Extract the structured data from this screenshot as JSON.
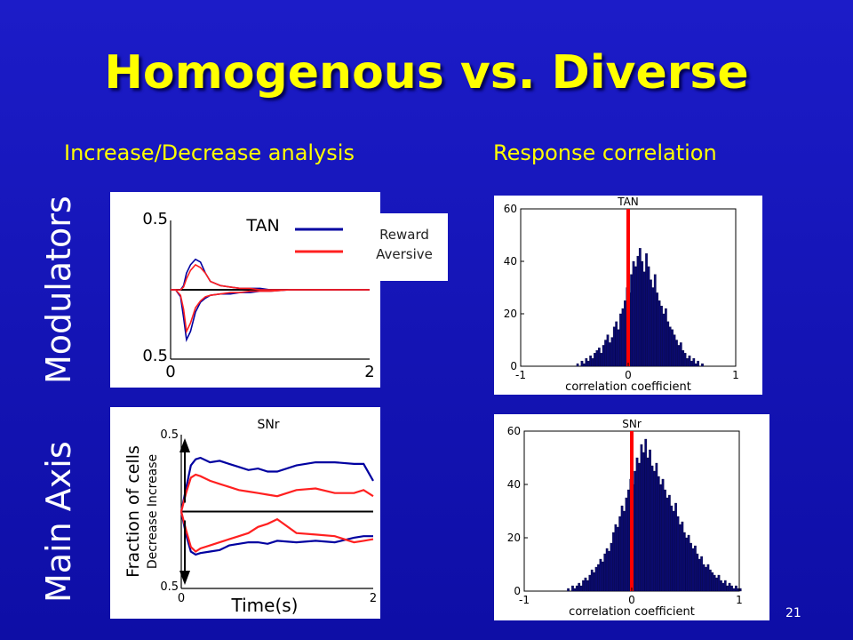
{
  "slide": {
    "title": "Homogenous vs. Diverse",
    "left_heading": "Increase/Decrease analysis",
    "right_heading": "Response correlation",
    "row_top_label": "Modulators",
    "row_bottom_label": "Main Axis",
    "slide_number": "21",
    "colors": {
      "title": "#ffff00",
      "background": "#1616bb",
      "bars": "#0a0a6e",
      "zero_line": "#ff0000",
      "reward": "#0000a0",
      "aversive": "#ff2020"
    }
  },
  "legend": {
    "reward": "Reward",
    "aversive": "Aversive"
  },
  "chart_data": [
    {
      "type": "line",
      "title": "TAN",
      "x_tick_labels": [
        "0",
        "2"
      ],
      "y_tick_labels": [
        "0.5",
        "0.5"
      ],
      "xlim": [
        0,
        2
      ],
      "ylim": [
        -0.5,
        0.5
      ],
      "legend": "top-right",
      "series": [
        {
          "name": "Reward",
          "color": "#0000a0",
          "x": [
            0,
            0.05,
            0.1,
            0.13,
            0.16,
            0.2,
            0.25,
            0.3,
            0.35,
            0.4,
            0.5,
            0.6,
            0.7,
            0.8,
            0.9,
            1.0,
            1.2,
            1.4,
            1.6,
            1.8,
            2.0
          ],
          "upper": [
            0,
            0,
            0,
            0.03,
            0.12,
            0.18,
            0.22,
            0.2,
            0.12,
            0.06,
            0.03,
            0.02,
            0.01,
            0.01,
            0.01,
            0.0,
            0.0,
            0.0,
            0.0,
            0.0,
            0.0
          ],
          "lower": [
            0,
            0,
            -0.05,
            -0.2,
            -0.36,
            -0.3,
            -0.16,
            -0.09,
            -0.06,
            -0.04,
            -0.03,
            -0.03,
            -0.02,
            -0.02,
            -0.01,
            -0.01,
            0.0,
            0.0,
            0.0,
            0.0,
            0.0
          ]
        },
        {
          "name": "Aversive",
          "color": "#ff2020",
          "x": [
            0,
            0.05,
            0.1,
            0.13,
            0.16,
            0.2,
            0.25,
            0.3,
            0.35,
            0.4,
            0.5,
            0.6,
            0.7,
            0.8,
            0.9,
            1.0,
            1.2,
            1.4,
            1.6,
            1.8,
            2.0
          ],
          "upper": [
            0,
            0,
            0,
            0.02,
            0.08,
            0.14,
            0.18,
            0.16,
            0.12,
            0.06,
            0.03,
            0.02,
            0.01,
            0.01,
            0.0,
            0.0,
            0.0,
            0.0,
            0.0,
            0.0,
            0.0
          ],
          "lower": [
            0,
            0,
            -0.04,
            -0.14,
            -0.3,
            -0.24,
            -0.13,
            -0.08,
            -0.05,
            -0.04,
            -0.03,
            -0.02,
            -0.02,
            -0.01,
            -0.01,
            -0.01,
            0.0,
            0.0,
            0.0,
            0.0,
            0.0
          ]
        }
      ]
    },
    {
      "type": "line",
      "title": "SNr",
      "xlabel": "Time(s)",
      "ylabel": "Fraction of cells",
      "ylabel_inner": "Decrease Increase",
      "x_tick_labels": [
        "0",
        "2"
      ],
      "y_tick_labels": [
        "0.5",
        "0.5"
      ],
      "xlim": [
        0,
        2
      ],
      "ylim": [
        -0.5,
        0.5
      ],
      "series": [
        {
          "name": "Reward",
          "color": "#0000a0",
          "x": [
            0,
            0.05,
            0.1,
            0.15,
            0.2,
            0.3,
            0.4,
            0.5,
            0.6,
            0.7,
            0.8,
            0.9,
            1.0,
            1.2,
            1.4,
            1.6,
            1.8,
            1.9,
            2.0
          ],
          "upper": [
            0,
            0.15,
            0.3,
            0.34,
            0.35,
            0.32,
            0.33,
            0.31,
            0.29,
            0.27,
            0.28,
            0.26,
            0.26,
            0.3,
            0.32,
            0.32,
            0.31,
            0.31,
            0.2
          ],
          "lower": [
            0,
            -0.15,
            -0.26,
            -0.28,
            -0.27,
            -0.26,
            -0.25,
            -0.22,
            -0.21,
            -0.2,
            -0.2,
            -0.21,
            -0.19,
            -0.2,
            -0.19,
            -0.2,
            -0.17,
            -0.16,
            -0.16
          ]
        },
        {
          "name": "Aversive",
          "color": "#ff2020",
          "x": [
            0,
            0.05,
            0.1,
            0.15,
            0.2,
            0.3,
            0.4,
            0.5,
            0.6,
            0.7,
            0.8,
            0.9,
            1.0,
            1.2,
            1.4,
            1.6,
            1.8,
            1.9,
            2.0
          ],
          "upper": [
            0,
            0.12,
            0.22,
            0.24,
            0.23,
            0.2,
            0.18,
            0.16,
            0.14,
            0.13,
            0.12,
            0.11,
            0.1,
            0.14,
            0.15,
            0.12,
            0.12,
            0.14,
            0.1
          ],
          "lower": [
            0,
            -0.12,
            -0.23,
            -0.26,
            -0.24,
            -0.22,
            -0.2,
            -0.18,
            -0.16,
            -0.14,
            -0.1,
            -0.08,
            -0.05,
            -0.14,
            -0.15,
            -0.16,
            -0.2,
            -0.19,
            -0.18
          ]
        }
      ]
    },
    {
      "type": "bar",
      "title": "TAN",
      "xlabel": "correlation coefficient",
      "x_ticks": [
        -1,
        0,
        1
      ],
      "y_ticks": [
        0,
        20,
        40,
        60
      ],
      "xlim": [
        -1,
        1
      ],
      "ylim": [
        0,
        60
      ],
      "highlight_line_x": 0,
      "bins_start": -0.5,
      "bins_step": 0.02,
      "values": [
        0,
        1,
        0,
        2,
        1,
        3,
        2,
        4,
        3,
        5,
        6,
        7,
        5,
        8,
        10,
        12,
        9,
        11,
        15,
        17,
        14,
        20,
        22,
        25,
        30,
        28,
        35,
        40,
        38,
        42,
        45,
        40,
        36,
        43,
        38,
        33,
        30,
        35,
        28,
        25,
        23,
        20,
        22,
        17,
        15,
        14,
        12,
        10,
        8,
        9,
        6,
        5,
        3,
        4,
        2,
        3,
        1,
        2,
        0,
        1,
        0
      ],
      "grid": false
    },
    {
      "type": "bar",
      "title": "SNr",
      "xlabel": "correlation coefficient",
      "x_ticks": [
        -1,
        0,
        1
      ],
      "y_ticks": [
        0,
        20,
        40,
        60
      ],
      "xlim": [
        -1,
        1
      ],
      "ylim": [
        0,
        60
      ],
      "highlight_line_x": 0,
      "bins_start": -0.6,
      "bins_step": 0.02,
      "values": [
        1,
        0,
        2,
        1,
        2,
        3,
        2,
        4,
        5,
        4,
        6,
        8,
        7,
        9,
        10,
        12,
        11,
        14,
        16,
        15,
        18,
        22,
        25,
        24,
        28,
        32,
        30,
        35,
        38,
        42,
        40,
        45,
        50,
        48,
        55,
        52,
        57,
        50,
        53,
        47,
        45,
        48,
        43,
        40,
        42,
        38,
        35,
        36,
        32,
        30,
        33,
        28,
        25,
        26,
        22,
        20,
        21,
        18,
        16,
        17,
        14,
        12,
        13,
        10,
        9,
        10,
        8,
        7,
        6,
        5,
        6,
        4,
        3,
        4,
        2,
        3,
        2,
        1,
        2,
        1,
        1
      ],
      "grid": false
    }
  ]
}
